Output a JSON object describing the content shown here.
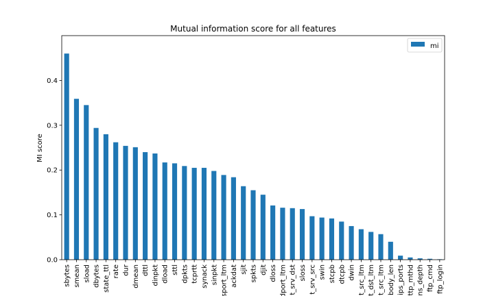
{
  "chart_data": {
    "type": "bar",
    "title": "Mutual information score for all features",
    "xlabel": "",
    "ylabel": "MI score",
    "ylim": [
      0,
      0.5
    ],
    "yticks": [
      "0.0",
      "0.1",
      "0.2",
      "0.3",
      "0.4"
    ],
    "grid": false,
    "legend": "top-right",
    "series": [
      {
        "name": "mi",
        "color": "#1f77b4",
        "values": [
          0.46,
          0.359,
          0.345,
          0.294,
          0.28,
          0.262,
          0.254,
          0.251,
          0.24,
          0.237,
          0.217,
          0.215,
          0.209,
          0.205,
          0.205,
          0.198,
          0.189,
          0.184,
          0.164,
          0.155,
          0.145,
          0.121,
          0.116,
          0.115,
          0.113,
          0.097,
          0.094,
          0.092,
          0.085,
          0.075,
          0.068,
          0.062,
          0.057,
          0.04,
          0.009,
          0.005,
          0.003,
          0.002,
          0.001
        ]
      }
    ],
    "categories": [
      "sbytes",
      "smean",
      "sload",
      "dbytes",
      "state_ttl",
      "rate",
      "dur",
      "dmean",
      "dttl",
      "dinpkt",
      "dload",
      "sttl",
      "dpkts",
      "tcprtt",
      "synack",
      "sinpkt",
      "sport_ltm",
      "ackdat",
      "sjit",
      "spkts",
      "djit",
      "dloss",
      "dport_ltm",
      "t_srv_dst",
      "sloss",
      "t_srv_src",
      "swin",
      "stcpb",
      "dtcpb",
      "dwin",
      "t_src_ltm",
      "t_dst_ltm",
      "t_src_ltm",
      "body_len",
      "ips_ports",
      "ttp_mthd",
      "ns_depth",
      "ftp_cmd",
      "ftp_login"
    ]
  }
}
